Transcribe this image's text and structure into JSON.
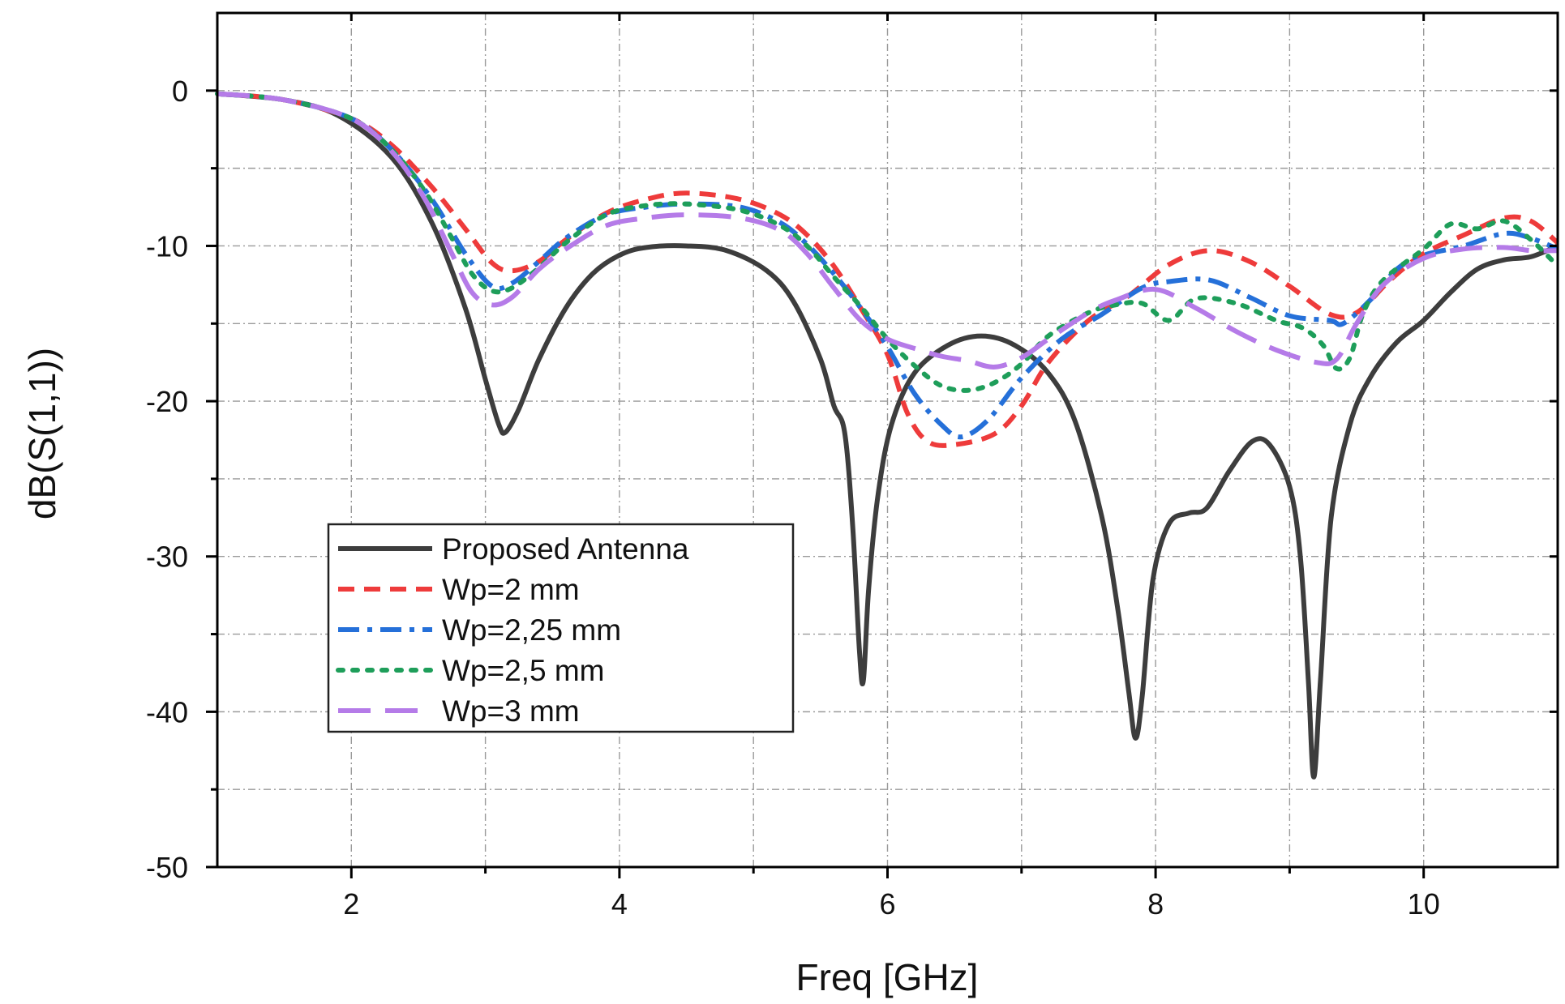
{
  "chart_data": {
    "type": "line",
    "title": "",
    "xlabel": "Freq [GHz]",
    "ylabel": "dB(S(1,1))",
    "xlim": [
      1,
      11
    ],
    "ylim": [
      -50,
      5
    ],
    "xticks": [
      2,
      4,
      6,
      8,
      10
    ],
    "xtick_labels": [
      "2",
      "4",
      "6",
      "8",
      "10"
    ],
    "yticks": [
      0,
      -10,
      -20,
      -30,
      -40,
      -50
    ],
    "ytick_labels": [
      "0",
      "-10",
      "-20",
      "-30",
      "-40",
      "-50"
    ],
    "grid": true,
    "legend_position": "bottom-left",
    "series": [
      {
        "name": "Proposed Antenna",
        "color": "#3d3d3d",
        "style": "solid",
        "points": [
          [
            1.0,
            -0.2
          ],
          [
            1.5,
            -0.6
          ],
          [
            1.9,
            -1.6
          ],
          [
            2.3,
            -4.3
          ],
          [
            2.6,
            -8.5
          ],
          [
            2.85,
            -14.0
          ],
          [
            3.0,
            -18.6
          ],
          [
            3.1,
            -21.5
          ],
          [
            3.15,
            -22.0
          ],
          [
            3.25,
            -20.5
          ],
          [
            3.4,
            -17.3
          ],
          [
            3.6,
            -14.0
          ],
          [
            3.8,
            -11.8
          ],
          [
            4.0,
            -10.6
          ],
          [
            4.2,
            -10.1
          ],
          [
            4.5,
            -10.0
          ],
          [
            4.8,
            -10.3
          ],
          [
            5.1,
            -11.6
          ],
          [
            5.3,
            -13.6
          ],
          [
            5.5,
            -17.3
          ],
          [
            5.6,
            -20.3
          ],
          [
            5.68,
            -22.0
          ],
          [
            5.74,
            -28.0
          ],
          [
            5.79,
            -36.0
          ],
          [
            5.82,
            -38.0
          ],
          [
            5.86,
            -32.0
          ],
          [
            5.93,
            -26.0
          ],
          [
            6.03,
            -21.5
          ],
          [
            6.2,
            -18.2
          ],
          [
            6.45,
            -16.4
          ],
          [
            6.7,
            -15.8
          ],
          [
            6.95,
            -16.4
          ],
          [
            7.2,
            -18.2
          ],
          [
            7.4,
            -21.3
          ],
          [
            7.6,
            -27.5
          ],
          [
            7.72,
            -33.5
          ],
          [
            7.8,
            -38.7
          ],
          [
            7.85,
            -41.7
          ],
          [
            7.9,
            -39.0
          ],
          [
            7.98,
            -31.5
          ],
          [
            8.1,
            -27.9
          ],
          [
            8.25,
            -27.2
          ],
          [
            8.38,
            -26.9
          ],
          [
            8.55,
            -24.5
          ],
          [
            8.72,
            -22.6
          ],
          [
            8.85,
            -22.8
          ],
          [
            9.0,
            -25.5
          ],
          [
            9.08,
            -30.0
          ],
          [
            9.14,
            -38.0
          ],
          [
            9.18,
            -44.2
          ],
          [
            9.23,
            -38.0
          ],
          [
            9.31,
            -27.5
          ],
          [
            9.45,
            -21.5
          ],
          [
            9.6,
            -18.5
          ],
          [
            9.8,
            -16.2
          ],
          [
            10.0,
            -14.8
          ],
          [
            10.2,
            -13.0
          ],
          [
            10.4,
            -11.5
          ],
          [
            10.6,
            -10.9
          ],
          [
            10.8,
            -10.7
          ],
          [
            11.0,
            -10.0
          ]
        ]
      },
      {
        "name": "Wp=2 mm",
        "color": "#ee3b3b",
        "style": "dash",
        "points": [
          [
            1.0,
            -0.2
          ],
          [
            1.5,
            -0.6
          ],
          [
            2.0,
            -1.8
          ],
          [
            2.3,
            -3.5
          ],
          [
            2.6,
            -6.2
          ],
          [
            2.85,
            -8.9
          ],
          [
            3.05,
            -11.1
          ],
          [
            3.2,
            -11.6
          ],
          [
            3.4,
            -11.0
          ],
          [
            3.6,
            -9.6
          ],
          [
            3.9,
            -7.9
          ],
          [
            4.2,
            -7.0
          ],
          [
            4.5,
            -6.6
          ],
          [
            4.9,
            -7.0
          ],
          [
            5.2,
            -8.0
          ],
          [
            5.4,
            -9.3
          ],
          [
            5.6,
            -11.3
          ],
          [
            5.8,
            -14.0
          ],
          [
            6.0,
            -17.0
          ],
          [
            6.15,
            -20.8
          ],
          [
            6.3,
            -22.6
          ],
          [
            6.5,
            -22.8
          ],
          [
            6.8,
            -22.1
          ],
          [
            7.0,
            -20.3
          ],
          [
            7.2,
            -17.5
          ],
          [
            7.5,
            -14.8
          ],
          [
            7.8,
            -13.2
          ],
          [
            8.1,
            -11.2
          ],
          [
            8.4,
            -10.3
          ],
          [
            8.7,
            -11.0
          ],
          [
            9.0,
            -12.6
          ],
          [
            9.3,
            -14.4
          ],
          [
            9.5,
            -14.3
          ],
          [
            9.75,
            -12.2
          ],
          [
            10.0,
            -10.5
          ],
          [
            10.3,
            -9.3
          ],
          [
            10.6,
            -8.2
          ],
          [
            10.8,
            -8.4
          ],
          [
            11.0,
            -9.8
          ]
        ]
      },
      {
        "name": "Wp=2,25 mm",
        "color": "#2570d9",
        "style": "dashdot",
        "points": [
          [
            1.0,
            -0.2
          ],
          [
            1.5,
            -0.6
          ],
          [
            2.0,
            -1.8
          ],
          [
            2.3,
            -3.8
          ],
          [
            2.6,
            -7.0
          ],
          [
            2.85,
            -10.5
          ],
          [
            3.05,
            -12.6
          ],
          [
            3.2,
            -12.4
          ],
          [
            3.4,
            -11.0
          ],
          [
            3.6,
            -9.5
          ],
          [
            3.9,
            -8.0
          ],
          [
            4.2,
            -7.5
          ],
          [
            4.5,
            -7.3
          ],
          [
            4.9,
            -7.5
          ],
          [
            5.2,
            -8.5
          ],
          [
            5.4,
            -9.9
          ],
          [
            5.6,
            -11.8
          ],
          [
            5.8,
            -14.0
          ],
          [
            6.0,
            -16.5
          ],
          [
            6.2,
            -19.5
          ],
          [
            6.4,
            -21.5
          ],
          [
            6.55,
            -22.3
          ],
          [
            6.75,
            -21.2
          ],
          [
            7.0,
            -18.5
          ],
          [
            7.3,
            -16.0
          ],
          [
            7.6,
            -14.4
          ],
          [
            7.9,
            -12.7
          ],
          [
            8.1,
            -12.3
          ],
          [
            8.4,
            -12.2
          ],
          [
            8.7,
            -13.3
          ],
          [
            9.0,
            -14.5
          ],
          [
            9.3,
            -14.8
          ],
          [
            9.4,
            -15.0
          ],
          [
            9.6,
            -13.5
          ],
          [
            9.8,
            -11.5
          ],
          [
            10.0,
            -10.6
          ],
          [
            10.3,
            -10.0
          ],
          [
            10.6,
            -9.2
          ],
          [
            10.8,
            -9.5
          ],
          [
            11.0,
            -10.2
          ]
        ]
      },
      {
        "name": "Wp=2,5 mm",
        "color": "#1e9e5a",
        "style": "dot",
        "points": [
          [
            1.0,
            -0.2
          ],
          [
            1.5,
            -0.6
          ],
          [
            2.0,
            -1.8
          ],
          [
            2.3,
            -3.8
          ],
          [
            2.55,
            -6.5
          ],
          [
            2.75,
            -9.5
          ],
          [
            2.9,
            -11.8
          ],
          [
            3.05,
            -12.9
          ],
          [
            3.2,
            -12.7
          ],
          [
            3.4,
            -11.4
          ],
          [
            3.6,
            -9.8
          ],
          [
            3.9,
            -8.0
          ],
          [
            4.2,
            -7.4
          ],
          [
            4.5,
            -7.3
          ],
          [
            4.9,
            -7.7
          ],
          [
            5.2,
            -8.7
          ],
          [
            5.4,
            -10.0
          ],
          [
            5.6,
            -12.0
          ],
          [
            5.8,
            -13.9
          ],
          [
            6.0,
            -16.0
          ],
          [
            6.2,
            -17.7
          ],
          [
            6.4,
            -19.0
          ],
          [
            6.6,
            -19.3
          ],
          [
            6.8,
            -18.8
          ],
          [
            7.0,
            -17.6
          ],
          [
            7.2,
            -15.8
          ],
          [
            7.5,
            -14.3
          ],
          [
            7.7,
            -13.8
          ],
          [
            7.9,
            -13.7
          ],
          [
            8.1,
            -14.8
          ],
          [
            8.3,
            -13.4
          ],
          [
            8.6,
            -13.7
          ],
          [
            8.9,
            -14.8
          ],
          [
            9.1,
            -15.3
          ],
          [
            9.25,
            -16.4
          ],
          [
            9.35,
            -17.9
          ],
          [
            9.45,
            -17.2
          ],
          [
            9.55,
            -14.3
          ],
          [
            9.7,
            -12.2
          ],
          [
            10.0,
            -10.2
          ],
          [
            10.2,
            -8.6
          ],
          [
            10.4,
            -8.9
          ],
          [
            10.6,
            -8.4
          ],
          [
            10.8,
            -9.6
          ],
          [
            11.0,
            -11.3
          ]
        ]
      },
      {
        "name": "Wp=3 mm",
        "color": "#b57be8",
        "style": "longdash",
        "points": [
          [
            1.0,
            -0.2
          ],
          [
            1.5,
            -0.6
          ],
          [
            2.0,
            -1.8
          ],
          [
            2.3,
            -3.9
          ],
          [
            2.55,
            -7.0
          ],
          [
            2.75,
            -10.5
          ],
          [
            2.9,
            -13.0
          ],
          [
            3.05,
            -13.8
          ],
          [
            3.2,
            -13.3
          ],
          [
            3.4,
            -11.5
          ],
          [
            3.6,
            -10.2
          ],
          [
            3.9,
            -8.7
          ],
          [
            4.2,
            -8.2
          ],
          [
            4.5,
            -8.0
          ],
          [
            4.9,
            -8.2
          ],
          [
            5.2,
            -9.0
          ],
          [
            5.4,
            -10.5
          ],
          [
            5.6,
            -12.7
          ],
          [
            5.8,
            -14.8
          ],
          [
            6.0,
            -16.0
          ],
          [
            6.2,
            -16.6
          ],
          [
            6.4,
            -17.1
          ],
          [
            6.6,
            -17.4
          ],
          [
            6.8,
            -17.8
          ],
          [
            7.0,
            -17.2
          ],
          [
            7.2,
            -16.0
          ],
          [
            7.5,
            -14.3
          ],
          [
            7.7,
            -13.5
          ],
          [
            8.0,
            -12.8
          ],
          [
            8.3,
            -14.0
          ],
          [
            8.6,
            -15.5
          ],
          [
            8.9,
            -16.7
          ],
          [
            9.2,
            -17.5
          ],
          [
            9.35,
            -17.3
          ],
          [
            9.5,
            -15.0
          ],
          [
            9.7,
            -12.5
          ],
          [
            10.0,
            -10.8
          ],
          [
            10.3,
            -10.2
          ],
          [
            10.6,
            -10.1
          ],
          [
            10.8,
            -10.3
          ],
          [
            11.0,
            -10.3
          ]
        ]
      }
    ]
  }
}
